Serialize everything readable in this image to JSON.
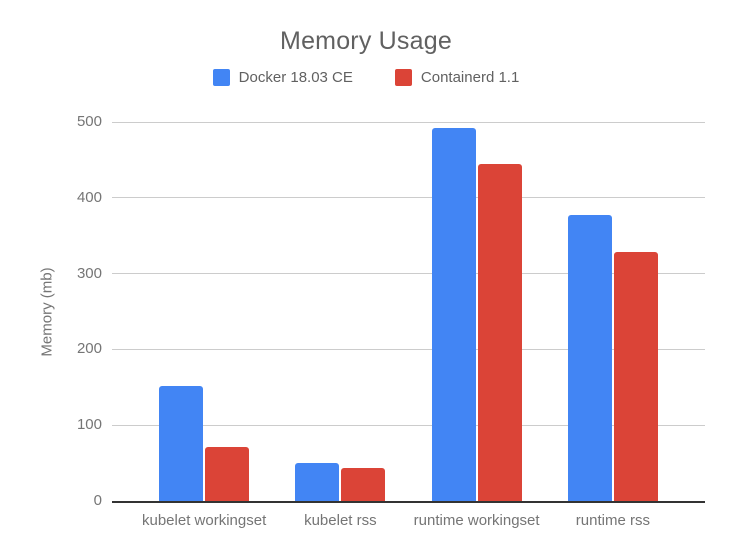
{
  "title": "Memory Usage",
  "legend": {
    "items": [
      {
        "label": "Docker 18.03 CE",
        "color": "#4285F4"
      },
      {
        "label": "Containerd 1.1",
        "color": "#DB4437"
      }
    ]
  },
  "colors": {
    "docker_blue": "#4285F4",
    "containerd_red": "#DB4437",
    "gridline": "#CCCCCC",
    "axis_line": "#333333",
    "axis_text": "#757575",
    "title_text": "#616161"
  },
  "chart_data": {
    "type": "bar",
    "title": "Memory Usage",
    "categories": [
      "kubelet workingset",
      "kubelet rss",
      "runtime workingset",
      "runtime rss"
    ],
    "series": [
      {
        "name": "Docker 18.03 CE",
        "color": "#4285F4",
        "values": [
          152,
          50,
          492,
          377
        ]
      },
      {
        "name": "Containerd 1.1",
        "color": "#DB4437",
        "values": [
          71,
          43,
          444,
          328
        ]
      }
    ],
    "xlabel": "",
    "ylabel": "Memory (mb)",
    "ylim": [
      0,
      500
    ],
    "yticks": [
      0,
      100,
      200,
      300,
      400,
      500
    ],
    "grid": true,
    "legend_position": "top"
  }
}
